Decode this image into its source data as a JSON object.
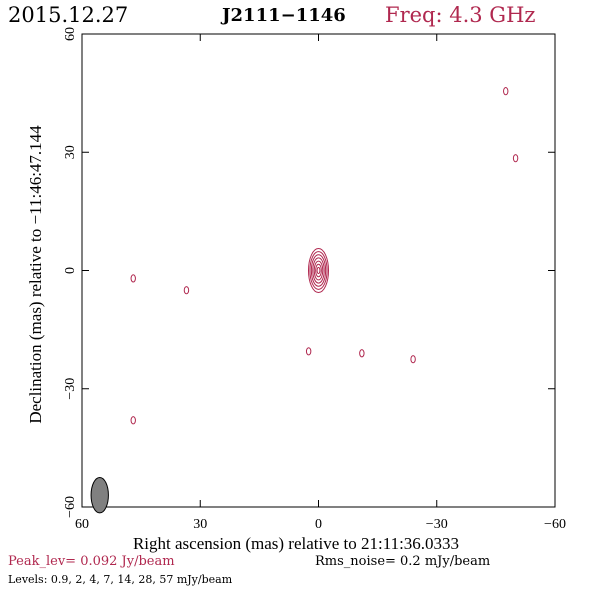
{
  "header": {
    "date": "2015.12.27",
    "source": "J2111−1146",
    "freq": "Freq: 4.3 GHz"
  },
  "footer": {
    "peak": "Peak_lev=  0.092 Jy/beam",
    "rms": "Rms_noise=  0.2 mJy/beam",
    "levels": "Levels: 0.9,   2,   4,   7,  14,  28,  57 mJy/beam"
  },
  "colors": {
    "accent": "#b0284f",
    "axis": "#000000",
    "beam": "#808080"
  },
  "chart_data": {
    "type": "contour",
    "title": "",
    "xlabel": "Right ascension (mas) relative to 21:11:36.0333",
    "ylabel": "Declination (mas) relative to −11:46:47.144",
    "xlim": [
      60,
      -60
    ],
    "ylim": [
      -60,
      60
    ],
    "xticks": [
      60,
      30,
      0,
      -30,
      -60
    ],
    "yticks": [
      -60,
      -30,
      0,
      30,
      60
    ],
    "xtick_labels": [
      "60",
      "30",
      "0",
      "−30",
      "−60"
    ],
    "ytick_labels": [
      "−60",
      "−30",
      "0",
      "30",
      "60"
    ],
    "levels_mJy_per_beam": [
      0.9,
      2,
      4,
      7,
      14,
      28,
      57
    ],
    "peak_Jy_per_beam": 0.092,
    "rms_noise_mJy_per_beam": 0.2,
    "components": [
      {
        "x": 0,
        "y": 0,
        "nlevels": 7
      },
      {
        "x": 47,
        "y": -2,
        "nlevels": 1
      },
      {
        "x": 33.5,
        "y": -5,
        "nlevels": 1
      },
      {
        "x": 2.5,
        "y": -20.5,
        "nlevels": 1
      },
      {
        "x": -11,
        "y": -21,
        "nlevels": 1
      },
      {
        "x": -24,
        "y": -22.5,
        "nlevels": 1
      },
      {
        "x": 47,
        "y": -38,
        "nlevels": 1
      },
      {
        "x": -47.5,
        "y": 45.5,
        "nlevels": 1
      },
      {
        "x": -50,
        "y": 28.5,
        "nlevels": 1
      }
    ],
    "beam": {
      "x": 55.5,
      "y": -57,
      "major_mas": 4.5,
      "minor_mas": 2.2,
      "pa_deg": 0
    }
  }
}
